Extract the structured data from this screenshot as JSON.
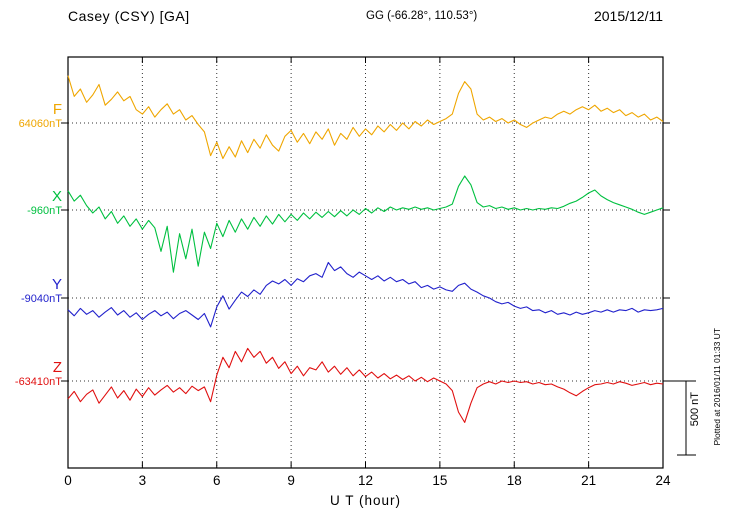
{
  "chart_data": {
    "type": "line",
    "title": "Casey (CSY)  [GA]",
    "subtitle": "GG (-66.28°, 110.53°)",
    "date": "2015/12/11",
    "xlabel": "U T (hour)",
    "x_range": [
      0,
      24
    ],
    "x_ticks": [
      0,
      3,
      6,
      9,
      12,
      15,
      18,
      21,
      24
    ],
    "sample_interval_hours": 0.25,
    "scale_bar": {
      "label": "500 nT",
      "nT": 500
    },
    "plotted_note": "Plotted at 2016/01/11 01:33 UT",
    "grid": "dotted at 3-hour intervals and at each channel baseline",
    "series": [
      {
        "name": "F",
        "baseline_nT": 64060,
        "baseline_label": "64060nT",
        "color": "#efa600",
        "offsets_nT": [
          320,
          180,
          230,
          140,
          190,
          260,
          120,
          160,
          210,
          150,
          180,
          90,
          60,
          110,
          40,
          90,
          130,
          60,
          90,
          20,
          50,
          -10,
          -60,
          -220,
          -130,
          -240,
          -160,
          -230,
          -120,
          -200,
          -110,
          -170,
          -80,
          -150,
          -190,
          -90,
          -50,
          -130,
          -70,
          -140,
          -60,
          -110,
          -40,
          -150,
          -70,
          -110,
          -30,
          -90,
          -40,
          -80,
          -20,
          -60,
          -10,
          -50,
          0,
          -40,
          10,
          -20,
          20,
          -10,
          10,
          30,
          60,
          200,
          280,
          230,
          60,
          20,
          40,
          10,
          30,
          0,
          20,
          -10,
          -30,
          0,
          20,
          40,
          30,
          60,
          80,
          60,
          90,
          110,
          90,
          120,
          80,
          100,
          70,
          90,
          50,
          70,
          40,
          60,
          20,
          40,
          10
        ]
      },
      {
        "name": "X",
        "baseline_nT": -960,
        "baseline_label": "-960nT",
        "color": "#00c040",
        "offsets_nT": [
          130,
          60,
          100,
          30,
          -20,
          20,
          -60,
          -10,
          -90,
          -40,
          -110,
          -60,
          -130,
          -70,
          -120,
          -280,
          -110,
          -420,
          -160,
          -330,
          -130,
          -380,
          -150,
          -260,
          -90,
          -180,
          -70,
          -150,
          -60,
          -130,
          -50,
          -110,
          -40,
          -95,
          -30,
          -80,
          -30,
          -70,
          -20,
          -60,
          -15,
          -50,
          -10,
          -45,
          -5,
          -40,
          0,
          -30,
          10,
          -20,
          15,
          -10,
          20,
          0,
          15,
          5,
          20,
          5,
          15,
          0,
          10,
          20,
          40,
          160,
          230,
          170,
          50,
          20,
          30,
          10,
          20,
          5,
          15,
          0,
          10,
          0,
          10,
          5,
          15,
          10,
          25,
          45,
          60,
          85,
          115,
          135,
          95,
          70,
          50,
          35,
          20,
          5,
          -15,
          -30,
          -15,
          0,
          15
        ]
      },
      {
        "name": "Y",
        "baseline_nT": -9040,
        "baseline_label": "-9040nT",
        "color": "#2222cc",
        "offsets_nT": [
          -80,
          -120,
          -70,
          -110,
          -85,
          -130,
          -95,
          -65,
          -115,
          -85,
          -130,
          -100,
          -145,
          -110,
          -85,
          -120,
          -95,
          -140,
          -105,
          -85,
          -115,
          -145,
          -105,
          -195,
          -60,
          15,
          -75,
          -15,
          40,
          10,
          55,
          25,
          85,
          115,
          95,
          125,
          85,
          130,
          110,
          150,
          165,
          140,
          240,
          185,
          210,
          165,
          140,
          175,
          150,
          125,
          150,
          115,
          140,
          110,
          125,
          95,
          110,
          70,
          85,
          60,
          75,
          55,
          45,
          85,
          100,
          60,
          40,
          15,
          0,
          -25,
          -40,
          -30,
          -55,
          -70,
          -60,
          -85,
          -80,
          -100,
          -85,
          -110,
          -100,
          -115,
          -95,
          -110,
          -100,
          -85,
          -95,
          -80,
          -95,
          -80,
          -85,
          -70,
          -95,
          -80,
          -85,
          -80,
          -70
        ]
      },
      {
        "name": "Z",
        "baseline_nT": -63410,
        "baseline_label": "-63410nT",
        "color": "#e01010",
        "offsets_nT": [
          -120,
          -70,
          -140,
          -90,
          -60,
          -150,
          -95,
          -40,
          -115,
          -65,
          -130,
          -55,
          -105,
          -45,
          -95,
          -60,
          -30,
          -75,
          -45,
          -85,
          -35,
          -65,
          -40,
          -140,
          40,
          160,
          90,
          200,
          130,
          220,
          160,
          200,
          120,
          160,
          85,
          130,
          50,
          100,
          35,
          90,
          75,
          130,
          60,
          100,
          45,
          90,
          35,
          75,
          30,
          60,
          20,
          50,
          15,
          40,
          10,
          35,
          0,
          25,
          -5,
          20,
          0,
          -20,
          -65,
          -210,
          -280,
          -150,
          -45,
          -20,
          -5,
          -20,
          0,
          -10,
          0,
          -10,
          -5,
          -20,
          -10,
          -25,
          -20,
          -40,
          -55,
          -80,
          -100,
          -70,
          -45,
          -25,
          -20,
          -10,
          -20,
          -5,
          -15,
          -30,
          -20,
          -10,
          -25,
          -15,
          -20
        ]
      }
    ]
  }
}
